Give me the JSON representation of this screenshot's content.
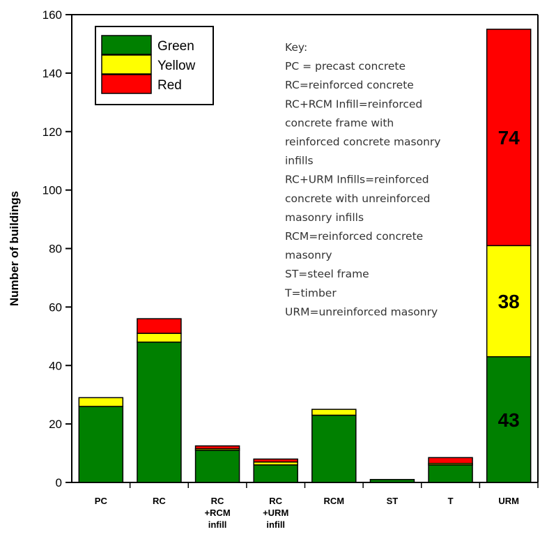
{
  "chart_data": {
    "type": "bar",
    "stacked": true,
    "categories": [
      [
        "PC"
      ],
      [
        "RC"
      ],
      [
        "RC",
        "+RCM",
        "infill"
      ],
      [
        "RC",
        "+URM",
        "infill"
      ],
      [
        "RCM"
      ],
      [
        "ST"
      ],
      [
        "T"
      ],
      [
        "URM"
      ]
    ],
    "series": [
      {
        "name": "Green",
        "color": "#008000",
        "values": [
          26,
          48,
          11,
          6,
          23,
          1,
          6,
          43
        ]
      },
      {
        "name": "Yellow",
        "color": "#ffff00",
        "values": [
          3,
          3,
          0.5,
          1,
          2,
          0,
          0.5,
          38
        ]
      },
      {
        "name": "Red",
        "color": "#ff0000",
        "values": [
          0,
          5,
          1,
          1,
          0,
          0,
          2,
          74
        ]
      }
    ],
    "data_labels": [
      {
        "category_index": 7,
        "series_index": 0,
        "text": "43"
      },
      {
        "category_index": 7,
        "series_index": 1,
        "text": "38"
      },
      {
        "category_index": 7,
        "series_index": 2,
        "text": "74"
      }
    ],
    "title": "",
    "xlabel": "",
    "ylabel": "Number of buildings",
    "ylim": [
      0,
      160
    ],
    "yticks": [
      0,
      20,
      40,
      60,
      80,
      100,
      120,
      140,
      160
    ],
    "grid": false,
    "legend_position": "top-left",
    "key_lines": [
      "Key:",
      "PC = precast concrete",
      "RC=reinforced concrete",
      "RC+RCM Infill=reinforced",
      "concrete frame with",
      "reinforced concrete masonry",
      "infills",
      "RC+URM Infills=reinforced",
      "concrete with unreinforced",
      "masonry infills",
      "RCM=reinforced concrete",
      "masonry",
      "ST=steel frame",
      "T=timber",
      "URM=unreinforced masonry"
    ]
  }
}
